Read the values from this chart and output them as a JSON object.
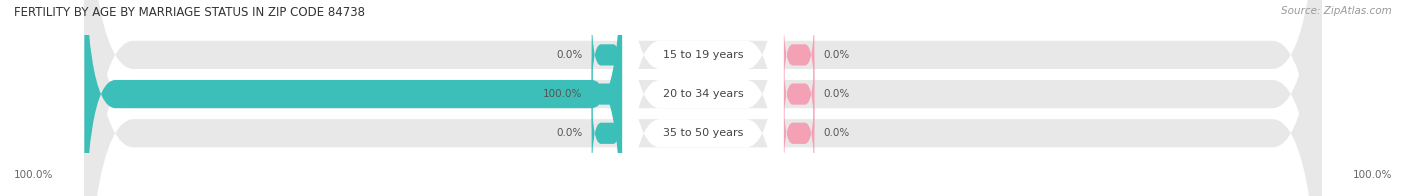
{
  "title": "FERTILITY BY AGE BY MARRIAGE STATUS IN ZIP CODE 84738",
  "source": "Source: ZipAtlas.com",
  "categories": [
    "15 to 19 years",
    "20 to 34 years",
    "35 to 50 years"
  ],
  "married_values": [
    0.0,
    100.0,
    0.0
  ],
  "unmarried_values": [
    0.0,
    0.0,
    0.0
  ],
  "married_color": "#3BBFB8",
  "unmarried_color": "#F4A0B5",
  "bar_bg_color": "#E8E8E8",
  "label_box_color": "#FFFFFF",
  "title_fontsize": 8.5,
  "source_fontsize": 7.5,
  "label_fontsize": 7.5,
  "category_fontsize": 8,
  "left_bottom_label": "100.0%",
  "right_bottom_label": "100.0%",
  "fig_bg_color": "#FFFFFF"
}
